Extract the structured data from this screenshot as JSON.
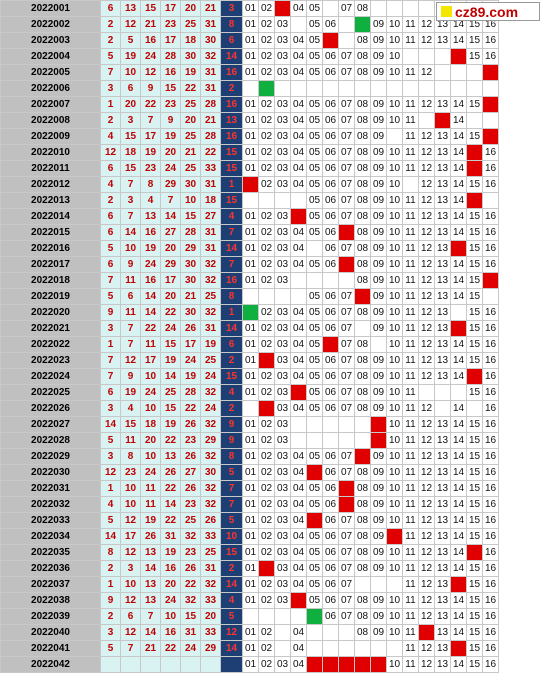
{
  "logo": {
    "text": "cz89.com",
    "square_color": "#f5e600"
  },
  "colors": {
    "hit": "#e00000",
    "hit_special": "#10b040",
    "blue_col": "#1d3f73",
    "red_text": "#c00000"
  },
  "rows": [
    {
      "issue": "2022001",
      "reds": [
        6,
        13,
        15,
        17,
        20,
        21
      ],
      "blue": 3,
      "cells": [
        "01",
        "02",
        "hit",
        "04",
        "05",
        "",
        "07",
        "08",
        "",
        "",
        "",
        "",
        "",
        "",
        "",
        ""
      ],
      "special": []
    },
    {
      "issue": "2022002",
      "reds": [
        2,
        12,
        21,
        23,
        25,
        31
      ],
      "blue": 8,
      "cells": [
        "01",
        "02",
        "03",
        "",
        "05",
        "06",
        "",
        "hitg",
        "09",
        "10",
        "11",
        "12",
        "13",
        "14",
        "15",
        "16"
      ],
      "special": []
    },
    {
      "issue": "2022003",
      "reds": [
        2,
        5,
        16,
        17,
        18,
        30
      ],
      "blue": 6,
      "cells": [
        "01",
        "02",
        "03",
        "04",
        "05",
        "hit",
        "",
        "08",
        "09",
        "10",
        "11",
        "12",
        "13",
        "14",
        "15",
        "16"
      ],
      "special": []
    },
    {
      "issue": "2022004",
      "reds": [
        5,
        19,
        24,
        28,
        30,
        32
      ],
      "blue": 14,
      "cells": [
        "01",
        "02",
        "03",
        "04",
        "05",
        "06",
        "07",
        "08",
        "09",
        "10",
        "",
        "",
        "",
        "hit",
        "15",
        "16"
      ],
      "special": []
    },
    {
      "issue": "2022005",
      "reds": [
        7,
        10,
        12,
        16,
        19,
        31
      ],
      "blue": 16,
      "cells": [
        "01",
        "02",
        "03",
        "04",
        "05",
        "06",
        "07",
        "08",
        "09",
        "10",
        "11",
        "12",
        "",
        "",
        "",
        "hit"
      ],
      "special": []
    },
    {
      "issue": "2022006",
      "reds": [
        3,
        6,
        9,
        15,
        22,
        31
      ],
      "blue": 2,
      "cells": [
        "",
        "hitg",
        "",
        "",
        "",
        "",
        "",
        "",
        "",
        "",
        "",
        "",
        "",
        "",
        "",
        ""
      ],
      "special": []
    },
    {
      "issue": "2022007",
      "reds": [
        1,
        20,
        22,
        23,
        25,
        28
      ],
      "blue": 16,
      "cells": [
        "01",
        "02",
        "03",
        "04",
        "05",
        "06",
        "07",
        "08",
        "09",
        "10",
        "11",
        "12",
        "13",
        "14",
        "15",
        "hit"
      ],
      "special": []
    },
    {
      "issue": "2022008",
      "reds": [
        2,
        3,
        7,
        9,
        20,
        21
      ],
      "blue": 13,
      "cells": [
        "01",
        "02",
        "03",
        "04",
        "05",
        "06",
        "07",
        "08",
        "09",
        "10",
        "11",
        "",
        "hit",
        "14",
        "",
        ""
      ],
      "special": []
    },
    {
      "issue": "2022009",
      "reds": [
        4,
        15,
        17,
        19,
        25,
        28
      ],
      "blue": 16,
      "cells": [
        "01",
        "02",
        "03",
        "04",
        "05",
        "06",
        "07",
        "08",
        "09",
        "",
        "11",
        "12",
        "13",
        "14",
        "15",
        "hit"
      ],
      "special": []
    },
    {
      "issue": "2022010",
      "reds": [
        12,
        18,
        19,
        20,
        21,
        22
      ],
      "blue": 15,
      "cells": [
        "01",
        "02",
        "03",
        "04",
        "05",
        "06",
        "07",
        "08",
        "09",
        "10",
        "11",
        "12",
        "13",
        "14",
        "hit",
        "16"
      ],
      "special": []
    },
    {
      "issue": "2022011",
      "reds": [
        6,
        15,
        23,
        24,
        25,
        33
      ],
      "blue": 15,
      "cells": [
        "01",
        "02",
        "03",
        "04",
        "05",
        "06",
        "07",
        "08",
        "09",
        "10",
        "11",
        "12",
        "13",
        "14",
        "hit",
        "16"
      ],
      "special": []
    },
    {
      "issue": "2022012",
      "reds": [
        4,
        7,
        8,
        29,
        30,
        31
      ],
      "blue": 1,
      "cells": [
        "hit",
        "02",
        "03",
        "04",
        "05",
        "06",
        "07",
        "08",
        "09",
        "10",
        "",
        "12",
        "13",
        "14",
        "15",
        "16"
      ],
      "special": []
    },
    {
      "issue": "2022013",
      "reds": [
        2,
        3,
        4,
        7,
        10,
        18
      ],
      "blue": 15,
      "cells": [
        "",
        "",
        "",
        "",
        "05",
        "06",
        "07",
        "08",
        "09",
        "10",
        "11",
        "12",
        "13",
        "14",
        "hit",
        ""
      ],
      "special": []
    },
    {
      "issue": "2022014",
      "reds": [
        6,
        7,
        13,
        14,
        15,
        27
      ],
      "blue": 4,
      "cells": [
        "01",
        "02",
        "03",
        "hit",
        "05",
        "06",
        "07",
        "08",
        "09",
        "10",
        "11",
        "12",
        "13",
        "14",
        "15",
        "16"
      ],
      "special": []
    },
    {
      "issue": "2022015",
      "reds": [
        6,
        14,
        16,
        27,
        28,
        31
      ],
      "blue": 7,
      "cells": [
        "01",
        "02",
        "03",
        "04",
        "05",
        "06",
        "hit",
        "08",
        "09",
        "10",
        "11",
        "12",
        "13",
        "14",
        "15",
        "16"
      ],
      "special": []
    },
    {
      "issue": "2022016",
      "reds": [
        5,
        10,
        19,
        20,
        29,
        31
      ],
      "blue": 14,
      "cells": [
        "01",
        "02",
        "03",
        "04",
        "",
        "06",
        "07",
        "08",
        "09",
        "10",
        "11",
        "12",
        "13",
        "hit",
        "15",
        "16"
      ],
      "special": []
    },
    {
      "issue": "2022017",
      "reds": [
        6,
        9,
        24,
        29,
        30,
        32
      ],
      "blue": 7,
      "cells": [
        "01",
        "02",
        "03",
        "04",
        "05",
        "06",
        "hit",
        "08",
        "09",
        "10",
        "11",
        "12",
        "13",
        "14",
        "15",
        "16"
      ],
      "special": []
    },
    {
      "issue": "2022018",
      "reds": [
        7,
        11,
        16,
        17,
        30,
        32
      ],
      "blue": 16,
      "cells": [
        "01",
        "02",
        "03",
        "",
        "",
        "",
        "",
        "08",
        "09",
        "10",
        "11",
        "12",
        "13",
        "14",
        "15",
        "hit"
      ],
      "special": []
    },
    {
      "issue": "2022019",
      "reds": [
        5,
        6,
        14,
        20,
        21,
        25
      ],
      "blue": 8,
      "cells": [
        "",
        "",
        "",
        "",
        "05",
        "06",
        "07",
        "hit",
        "09",
        "10",
        "11",
        "12",
        "13",
        "14",
        "15",
        ""
      ],
      "special": []
    },
    {
      "issue": "2022020",
      "reds": [
        9,
        11,
        14,
        22,
        30,
        32
      ],
      "blue": 1,
      "cells": [
        "hitg",
        "02",
        "03",
        "04",
        "05",
        "06",
        "07",
        "08",
        "09",
        "10",
        "11",
        "12",
        "13",
        "",
        "15",
        "16"
      ],
      "special": []
    },
    {
      "issue": "2022021",
      "reds": [
        3,
        7,
        22,
        24,
        26,
        31
      ],
      "blue": 14,
      "cells": [
        "01",
        "02",
        "03",
        "04",
        "05",
        "06",
        "07",
        "",
        "09",
        "10",
        "11",
        "12",
        "13",
        "hit",
        "15",
        "16"
      ],
      "special": []
    },
    {
      "issue": "2022022",
      "reds": [
        1,
        7,
        11,
        15,
        17,
        19
      ],
      "blue": 6,
      "cells": [
        "01",
        "02",
        "03",
        "04",
        "05",
        "hit",
        "07",
        "08",
        "",
        "10",
        "11",
        "12",
        "13",
        "14",
        "15",
        "16"
      ],
      "special": []
    },
    {
      "issue": "2022023",
      "reds": [
        7,
        12,
        17,
        19,
        24,
        25
      ],
      "blue": 2,
      "cells": [
        "01",
        "hit",
        "03",
        "04",
        "05",
        "06",
        "07",
        "08",
        "09",
        "10",
        "11",
        "12",
        "13",
        "14",
        "15",
        "16"
      ],
      "special": []
    },
    {
      "issue": "2022024",
      "reds": [
        7,
        9,
        10,
        14,
        19,
        24
      ],
      "blue": 15,
      "cells": [
        "01",
        "02",
        "03",
        "04",
        "05",
        "06",
        "07",
        "08",
        "09",
        "10",
        "11",
        "12",
        "13",
        "14",
        "hit",
        "16"
      ],
      "special": []
    },
    {
      "issue": "2022025",
      "reds": [
        6,
        19,
        24,
        25,
        28,
        32
      ],
      "blue": 4,
      "cells": [
        "01",
        "02",
        "03",
        "hit",
        "05",
        "06",
        "07",
        "08",
        "09",
        "10",
        "11",
        "",
        "",
        "",
        "15",
        "16"
      ],
      "special": []
    },
    {
      "issue": "2022026",
      "reds": [
        3,
        4,
        10,
        15,
        22,
        24
      ],
      "blue": 2,
      "cells": [
        "",
        "hit",
        "03",
        "04",
        "05",
        "06",
        "07",
        "08",
        "09",
        "10",
        "11",
        "12",
        "",
        "14",
        "",
        "16"
      ],
      "special": []
    },
    {
      "issue": "2022027",
      "reds": [
        14,
        15,
        18,
        19,
        26,
        32
      ],
      "blue": 9,
      "cells": [
        "01",
        "02",
        "03",
        "",
        "",
        "",
        "",
        "",
        "hit",
        "10",
        "11",
        "12",
        "13",
        "14",
        "15",
        "16"
      ],
      "special": []
    },
    {
      "issue": "2022028",
      "reds": [
        5,
        11,
        20,
        22,
        23,
        29
      ],
      "blue": 9,
      "cells": [
        "01",
        "02",
        "03",
        "",
        "",
        "",
        "",
        "",
        "hit",
        "10",
        "11",
        "12",
        "13",
        "14",
        "15",
        "16"
      ],
      "special": []
    },
    {
      "issue": "2022029",
      "reds": [
        3,
        8,
        10,
        13,
        26,
        32
      ],
      "blue": 8,
      "cells": [
        "01",
        "02",
        "03",
        "04",
        "05",
        "06",
        "07",
        "hit",
        "09",
        "10",
        "11",
        "12",
        "13",
        "14",
        "15",
        "16"
      ],
      "special": []
    },
    {
      "issue": "2022030",
      "reds": [
        12,
        23,
        24,
        26,
        27,
        30
      ],
      "blue": 5,
      "cells": [
        "01",
        "02",
        "03",
        "04",
        "hit",
        "06",
        "07",
        "08",
        "09",
        "10",
        "11",
        "12",
        "13",
        "14",
        "15",
        "16"
      ],
      "special": []
    },
    {
      "issue": "2022031",
      "reds": [
        1,
        10,
        11,
        22,
        26,
        32
      ],
      "blue": 7,
      "cells": [
        "01",
        "02",
        "03",
        "04",
        "05",
        "06",
        "hit",
        "08",
        "09",
        "10",
        "11",
        "12",
        "13",
        "14",
        "15",
        "16"
      ],
      "special": []
    },
    {
      "issue": "2022032",
      "reds": [
        4,
        10,
        11,
        14,
        23,
        32
      ],
      "blue": 7,
      "cells": [
        "01",
        "02",
        "03",
        "04",
        "05",
        "06",
        "hit",
        "08",
        "09",
        "10",
        "11",
        "12",
        "13",
        "14",
        "15",
        "16"
      ],
      "special": []
    },
    {
      "issue": "2022033",
      "reds": [
        5,
        12,
        19,
        22,
        25,
        26
      ],
      "blue": 5,
      "cells": [
        "01",
        "02",
        "03",
        "04",
        "hit",
        "06",
        "07",
        "08",
        "09",
        "10",
        "11",
        "12",
        "13",
        "14",
        "15",
        "16"
      ],
      "special": []
    },
    {
      "issue": "2022034",
      "reds": [
        14,
        17,
        26,
        31,
        32,
        33
      ],
      "blue": 10,
      "cells": [
        "01",
        "02",
        "03",
        "04",
        "05",
        "06",
        "07",
        "08",
        "09",
        "hit",
        "11",
        "12",
        "13",
        "14",
        "15",
        "16"
      ],
      "special": []
    },
    {
      "issue": "2022035",
      "reds": [
        8,
        12,
        13,
        19,
        23,
        25
      ],
      "blue": 15,
      "cells": [
        "01",
        "02",
        "03",
        "04",
        "05",
        "06",
        "07",
        "08",
        "09",
        "10",
        "11",
        "12",
        "13",
        "14",
        "hit",
        "16"
      ],
      "special": []
    },
    {
      "issue": "2022036",
      "reds": [
        2,
        3,
        14,
        16,
        26,
        31
      ],
      "blue": 2,
      "cells": [
        "01",
        "hit",
        "03",
        "04",
        "05",
        "06",
        "07",
        "08",
        "09",
        "10",
        "11",
        "12",
        "13",
        "14",
        "15",
        "16"
      ],
      "special": []
    },
    {
      "issue": "2022037",
      "reds": [
        1,
        10,
        13,
        20,
        22,
        32
      ],
      "blue": 14,
      "cells": [
        "01",
        "02",
        "03",
        "04",
        "05",
        "06",
        "07",
        "",
        "",
        "",
        "11",
        "12",
        "13",
        "hit",
        "15",
        "16"
      ],
      "special": []
    },
    {
      "issue": "2022038",
      "reds": [
        9,
        12,
        13,
        24,
        32,
        33
      ],
      "blue": 4,
      "cells": [
        "01",
        "02",
        "03",
        "hit",
        "05",
        "06",
        "07",
        "08",
        "09",
        "10",
        "11",
        "12",
        "13",
        "14",
        "15",
        "16"
      ],
      "special": []
    },
    {
      "issue": "2022039",
      "reds": [
        2,
        6,
        7,
        10,
        15,
        20
      ],
      "blue": 5,
      "cells": [
        "",
        "",
        "",
        "",
        "hitg",
        "06",
        "07",
        "08",
        "09",
        "10",
        "11",
        "12",
        "13",
        "14",
        "15",
        "16"
      ],
      "special": []
    },
    {
      "issue": "2022040",
      "reds": [
        3,
        12,
        14,
        16,
        31,
        33
      ],
      "blue": 12,
      "cells": [
        "01",
        "02",
        "",
        "04",
        "",
        "",
        "",
        "08",
        "09",
        "10",
        "11",
        "hit",
        "13",
        "14",
        "15",
        "16"
      ],
      "special": []
    },
    {
      "issue": "2022041",
      "reds": [
        5,
        7,
        21,
        22,
        24,
        29
      ],
      "blue": 14,
      "cells": [
        "01",
        "02",
        "",
        "04",
        "",
        "",
        "",
        "",
        "",
        "",
        "11",
        "12",
        "13",
        "hit",
        "15",
        "16"
      ],
      "special": []
    },
    {
      "issue": "2022042",
      "reds": [
        "",
        "",
        "",
        "",
        "",
        ""
      ],
      "blue": "",
      "cells": [
        "01",
        "02",
        "03",
        "04",
        "hit",
        "hit",
        "hit",
        "hit",
        "hit",
        "10",
        "11",
        "12",
        "13",
        "14",
        "15",
        "16"
      ],
      "special": []
    }
  ]
}
